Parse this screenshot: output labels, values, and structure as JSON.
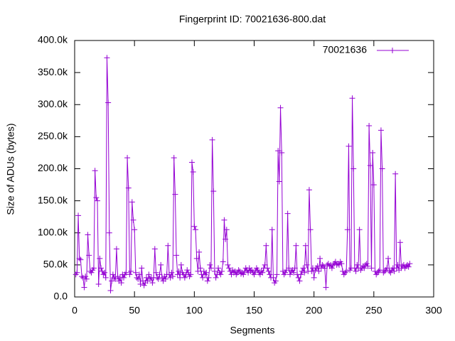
{
  "chart_data": {
    "type": "line",
    "title": "Fingerprint ID: 70021636-800.dat",
    "x_label": "Segments",
    "y_label": "Size of ADUs (bytes)",
    "xlim": [
      0,
      300
    ],
    "xticks": [
      0,
      50,
      100,
      150,
      200,
      250,
      300
    ],
    "ylim": [
      0,
      400000
    ],
    "yticks": [
      {
        "value": 0,
        "label": "0.0"
      },
      {
        "value": 50000,
        "label": "50.0k"
      },
      {
        "value": 100000,
        "label": "100.0k"
      },
      {
        "value": 150000,
        "label": "150.0k"
      },
      {
        "value": 200000,
        "label": "200.0k"
      },
      {
        "value": 250000,
        "label": "250.0k"
      },
      {
        "value": 300000,
        "label": "300.0k"
      },
      {
        "value": 350000,
        "label": "350.0k"
      },
      {
        "value": 400000,
        "label": "400.0k"
      }
    ],
    "legend": "top-right",
    "x": [
      1,
      2,
      3,
      4,
      5,
      6,
      7,
      8,
      9,
      10,
      11,
      12,
      13,
      14,
      15,
      16,
      17,
      18,
      19,
      20,
      21,
      22,
      23,
      24,
      25,
      26,
      27,
      28,
      29,
      30,
      31,
      32,
      33,
      34,
      35,
      36,
      37,
      38,
      39,
      40,
      41,
      42,
      43,
      44,
      45,
      46,
      47,
      48,
      49,
      50,
      51,
      52,
      53,
      54,
      55,
      56,
      57,
      58,
      59,
      60,
      61,
      62,
      63,
      64,
      65,
      66,
      67,
      68,
      69,
      70,
      71,
      72,
      73,
      74,
      75,
      76,
      77,
      78,
      79,
      80,
      81,
      82,
      83,
      84,
      85,
      86,
      87,
      88,
      89,
      90,
      91,
      92,
      93,
      94,
      95,
      96,
      97,
      98,
      99,
      100,
      101,
      102,
      103,
      104,
      105,
      106,
      107,
      108,
      109,
      110,
      111,
      112,
      113,
      114,
      115,
      116,
      117,
      118,
      119,
      120,
      121,
      122,
      123,
      124,
      125,
      126,
      127,
      128,
      129,
      130,
      131,
      132,
      133,
      134,
      135,
      136,
      137,
      138,
      139,
      140,
      141,
      142,
      143,
      144,
      145,
      146,
      147,
      148,
      149,
      150,
      151,
      152,
      153,
      154,
      155,
      156,
      157,
      158,
      159,
      160,
      161,
      162,
      163,
      164,
      165,
      166,
      167,
      168,
      169,
      170,
      171,
      172,
      173,
      174,
      175,
      176,
      177,
      178,
      179,
      180,
      181,
      182,
      183,
      184,
      185,
      186,
      187,
      188,
      189,
      190,
      191,
      192,
      193,
      194,
      195,
      196,
      197,
      198,
      199,
      200,
      201,
      202,
      203,
      204,
      205,
      206,
      207,
      208,
      209,
      210,
      211,
      212,
      213,
      214,
      215,
      216,
      217,
      218,
      219,
      220,
      221,
      222,
      223,
      224,
      225,
      226,
      227,
      228,
      229,
      230,
      231,
      232,
      233,
      234,
      235,
      236,
      237,
      238,
      239,
      240,
      241,
      242,
      243,
      244,
      245,
      246,
      247,
      248,
      249,
      250,
      251,
      252,
      253,
      254,
      255,
      256,
      257,
      258,
      259,
      260,
      261,
      262,
      263,
      264,
      265,
      266,
      267,
      268,
      269,
      270,
      271,
      272,
      273,
      274,
      275,
      276,
      277,
      278,
      279,
      280
    ],
    "series": [
      {
        "name": "70021636",
        "color": "#9400d3",
        "values": [
          35000,
          38000,
          127000,
          60000,
          58000,
          32000,
          30000,
          15000,
          32000,
          28000,
          97000,
          65000,
          40000,
          38000,
          42000,
          45000,
          197000,
          155000,
          150000,
          20000,
          60000,
          45000,
          40000,
          35000,
          38000,
          30000,
          373000,
          303000,
          100000,
          10000,
          25000,
          35000,
          30000,
          28000,
          75000,
          32000,
          25000,
          30000,
          22000,
          35000,
          30000,
          35000,
          38000,
          217000,
          170000,
          35000,
          40000,
          148000,
          120000,
          105000,
          38000,
          30000,
          28000,
          35000,
          20000,
          45000,
          25000,
          18000,
          22000,
          30000,
          25000,
          35000,
          28000,
          30000,
          22000,
          30000,
          75000,
          38000,
          30000,
          28000,
          35000,
          50000,
          30000,
          25000,
          32000,
          28000,
          35000,
          80000,
          35000,
          30000,
          38000,
          32000,
          217000,
          160000,
          65000,
          35000,
          40000,
          30000,
          50000,
          38000,
          35000,
          30000,
          35000,
          42000,
          38000,
          32000,
          35000,
          210000,
          195000,
          110000,
          105000,
          60000,
          40000,
          70000,
          45000,
          35000,
          30000,
          40000,
          35000,
          38000,
          25000,
          30000,
          50000,
          45000,
          245000,
          165000,
          40000,
          30000,
          35000,
          45000,
          38000,
          35000,
          40000,
          55000,
          120000,
          90000,
          105000,
          50000,
          45000,
          40000,
          35000,
          42000,
          38000,
          40000,
          35000,
          38000,
          42000,
          40000,
          36000,
          38000,
          35000,
          40000,
          45000,
          42000,
          38000,
          45000,
          40000,
          42000,
          38000,
          35000,
          40000,
          45000,
          42000,
          38000,
          35000,
          40000,
          38000,
          45000,
          50000,
          80000,
          45000,
          40000,
          35000,
          30000,
          105000,
          30000,
          22000,
          25000,
          35000,
          228000,
          180000,
          295000,
          225000,
          40000,
          35000,
          38000,
          42000,
          130000,
          45000,
          35000,
          40000,
          42000,
          38000,
          45000,
          80000,
          35000,
          30000,
          25000,
          35000,
          40000,
          45000,
          38000,
          80000,
          50000,
          40000,
          167000,
          105000,
          40000,
          45000,
          30000,
          42000,
          45000,
          48000,
          40000,
          60000,
          45000,
          50000,
          48000,
          45000,
          15000,
          50000,
          52000,
          48000,
          50000,
          45000,
          50000,
          52000,
          55000,
          50000,
          52000,
          50000,
          55000,
          52000,
          40000,
          35000,
          38000,
          40000,
          105000,
          235000,
          42000,
          45000,
          310000,
          200000,
          45000,
          40000,
          50000,
          45000,
          105000,
          42000,
          45000,
          48000,
          45000,
          50000,
          52000,
          48000,
          267000,
          205000,
          45000,
          225000,
          175000,
          40000,
          35000,
          38000,
          40000,
          42000,
          260000,
          200000,
          38000,
          40000,
          42000,
          45000,
          60000,
          40000,
          38000,
          42000,
          45000,
          40000,
          192000,
          45000,
          50000,
          42000,
          85000,
          45000,
          48000,
          50000,
          45000,
          48000,
          50000,
          47000,
          52000
        ]
      }
    ]
  }
}
